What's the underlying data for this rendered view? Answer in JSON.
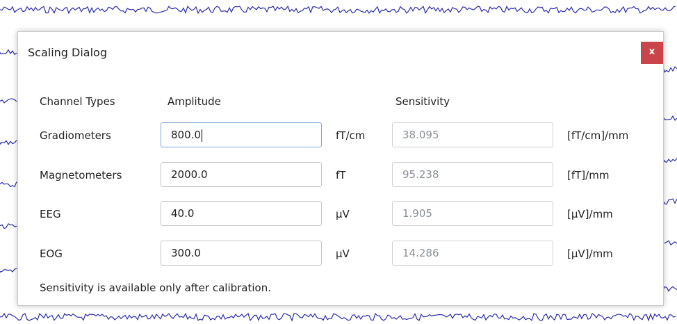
{
  "dialog": {
    "title": "Scaling Dialog",
    "close": "x",
    "headers": [
      "Channel Types",
      "Amplitude",
      "Sensitivity"
    ],
    "rows": [
      {
        "label": "Gradiometers",
        "amplitude": "800.0",
        "unit": "fT/cm",
        "sensitivity": "38.095",
        "sensitivity_unit": "[fT/cm]/mm"
      },
      {
        "label": "Magnetometers",
        "amplitude": "2000.0",
        "unit": "fT",
        "sensitivity": "95.238",
        "sensitivity_unit": "[fT]/mm"
      },
      {
        "label": "EEG",
        "amplitude": "40.0",
        "unit": "µV",
        "sensitivity": "1.905",
        "sensitivity_unit": "[µV]/mm"
      },
      {
        "label": "EOG",
        "amplitude": "300.0",
        "unit": "µV",
        "sensitivity": "14.286",
        "sensitivity_unit": "[µV]/mm"
      }
    ],
    "note": "Sensitivity is available only after calibration."
  }
}
